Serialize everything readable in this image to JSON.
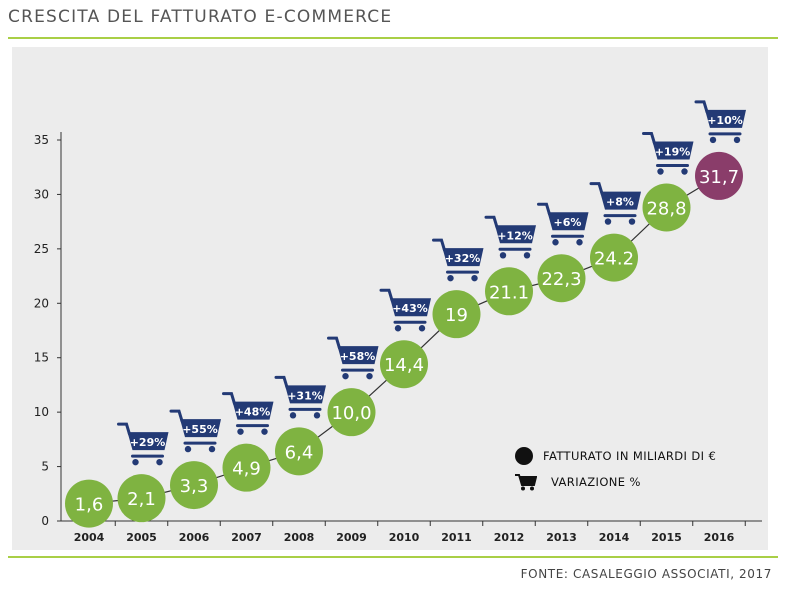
{
  "title": "CRESCITA DEL FATTURATO E-COMMERCE",
  "source": "FONTE: CASALEGGIO ASSOCIATI, 2017",
  "legend": {
    "revenue": "FATTURATO IN MILIARDI DI €",
    "variation": "VARIAZIONE %"
  },
  "colors": {
    "green": "#7fb341",
    "purple": "#8a3d6a",
    "cart": "#233a75",
    "accent_rule": "#a9cf46"
  },
  "icons": {
    "cart": "shopping-cart-icon"
  },
  "chart_data": {
    "type": "scatter",
    "categories": [
      "2004",
      "2005",
      "2006",
      "2007",
      "2008",
      "2009",
      "2010",
      "2011",
      "2012",
      "2013",
      "2014",
      "2015",
      "2016"
    ],
    "values": [
      1.6,
      2.1,
      3.3,
      4.9,
      6.4,
      10.0,
      14.4,
      19,
      21.1,
      22.3,
      24.2,
      28.8,
      31.7
    ],
    "value_labels": [
      "1,6",
      "2,1",
      "3,3",
      "4,9",
      "6,4",
      "10,0",
      "14,4",
      "19",
      "21.1",
      "22,3",
      "24.2",
      "28,8",
      "31,7"
    ],
    "variation_labels": [
      "",
      "+29%",
      "+55%",
      "+48%",
      "+31%",
      "+58%",
      "+43%",
      "+32%",
      "+12%",
      "+6%",
      "+8%",
      "+19%",
      "+10%"
    ],
    "yticks": [
      "0",
      "5",
      "10",
      "15",
      "20",
      "25",
      "30",
      "35"
    ],
    "ylim": [
      0,
      35
    ],
    "grid": false,
    "highlight_last": true,
    "legend_position": "bottom-right"
  }
}
